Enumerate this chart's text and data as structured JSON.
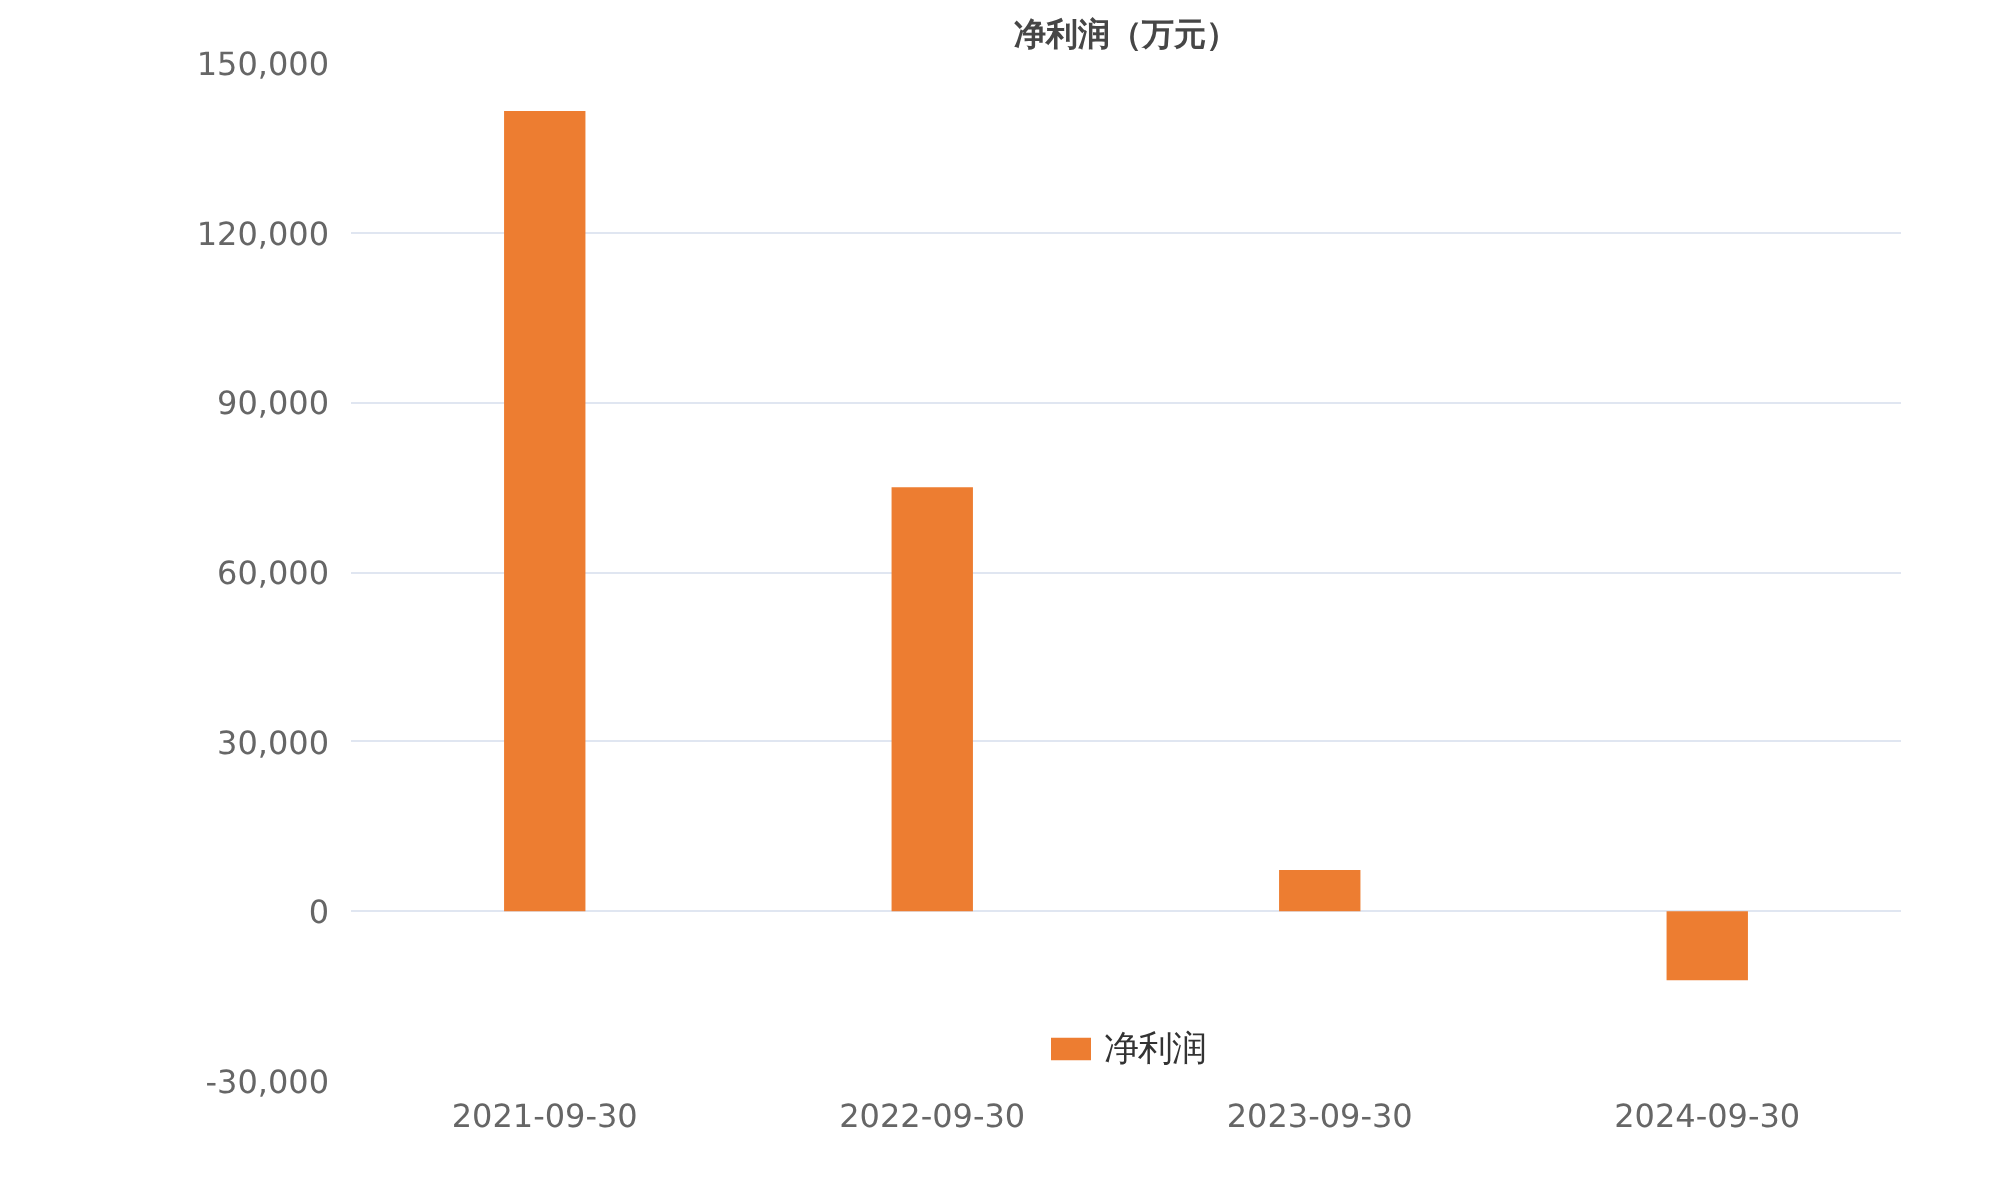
{
  "chart_data": {
    "type": "bar",
    "title": "净利润（万元）",
    "categories": [
      "2021-09-30",
      "2022-09-30",
      "2023-09-30",
      "2024-09-30"
    ],
    "series": [
      {
        "name": "净利润",
        "color": "#ed7d31",
        "values": [
          141500,
          75000,
          7300,
          -12200
        ]
      }
    ],
    "ylim": [
      -30000,
      150000
    ],
    "yticks": [
      {
        "value": -30000,
        "label": "-30,000"
      },
      0,
      {
        "value": 30000,
        "label": "30,000"
      },
      {
        "value": 60000,
        "label": "60,000"
      },
      {
        "value": 90000,
        "label": "90,000"
      },
      {
        "value": 120000,
        "label": "120,000"
      },
      {
        "value": 150000,
        "label": "150,000"
      }
    ],
    "grid": "y",
    "legend": "bottom"
  }
}
